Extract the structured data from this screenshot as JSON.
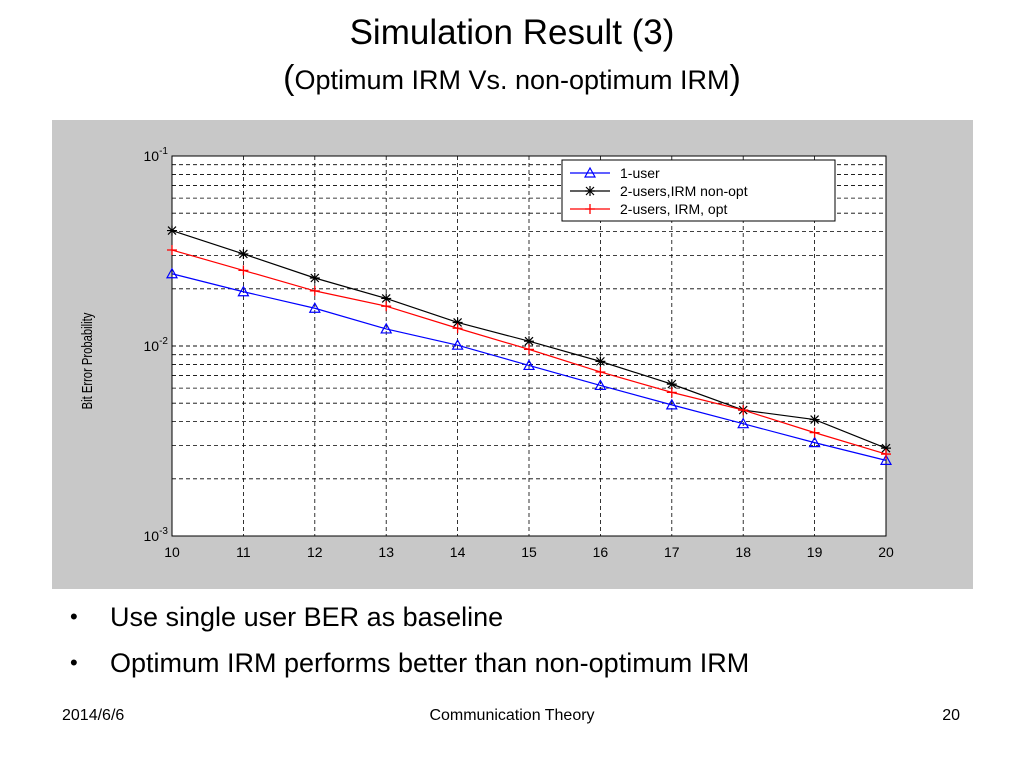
{
  "slide": {
    "title": "Simulation Result (3)",
    "subtitle_open": "(",
    "subtitle_text": "Optimum IRM Vs. non-optimum IRM",
    "subtitle_close": ")",
    "bullets": [
      "Use single user BER as baseline",
      "Optimum IRM performs better than non-optimum IRM"
    ],
    "bullet_glyph": "•",
    "footer": {
      "date": "2014/6/6",
      "center": "Communication Theory",
      "page": "20"
    }
  },
  "chart_data": {
    "type": "line",
    "title": "",
    "xlabel": "",
    "ylabel": "Bit Error Probability",
    "x": [
      10,
      11,
      12,
      13,
      14,
      15,
      16,
      17,
      18,
      19,
      20
    ],
    "xlim": [
      10,
      20
    ],
    "yscale": "log",
    "ylim": [
      0.001,
      0.1
    ],
    "ytick_labels": [
      {
        "base": "10",
        "exp": "-3",
        "value": 0.001
      },
      {
        "base": "10",
        "exp": "-2",
        "value": 0.01
      },
      {
        "base": "10",
        "exp": "-1",
        "value": 0.1
      }
    ],
    "grid": true,
    "legend_position": "top-right",
    "series": [
      {
        "name": "1-user",
        "color": "#0000ff",
        "marker": "triangle",
        "values": [
          0.024,
          0.0193,
          0.0158,
          0.0123,
          0.0101,
          0.0079,
          0.0062,
          0.0049,
          0.0039,
          0.0031,
          0.0025
        ]
      },
      {
        "name": "2-users,IRM non-opt",
        "color": "#000000",
        "marker": "star",
        "values": [
          0.0405,
          0.0305,
          0.0228,
          0.0178,
          0.0133,
          0.0106,
          0.0083,
          0.0063,
          0.0046,
          0.0041,
          0.0029
        ]
      },
      {
        "name": "2-users, IRM, opt",
        "color": "#ff0000",
        "marker": "plus",
        "values": [
          0.032,
          0.025,
          0.0195,
          0.0162,
          0.0124,
          0.0096,
          0.0073,
          0.0057,
          0.0046,
          0.0035,
          0.0027
        ]
      }
    ]
  }
}
